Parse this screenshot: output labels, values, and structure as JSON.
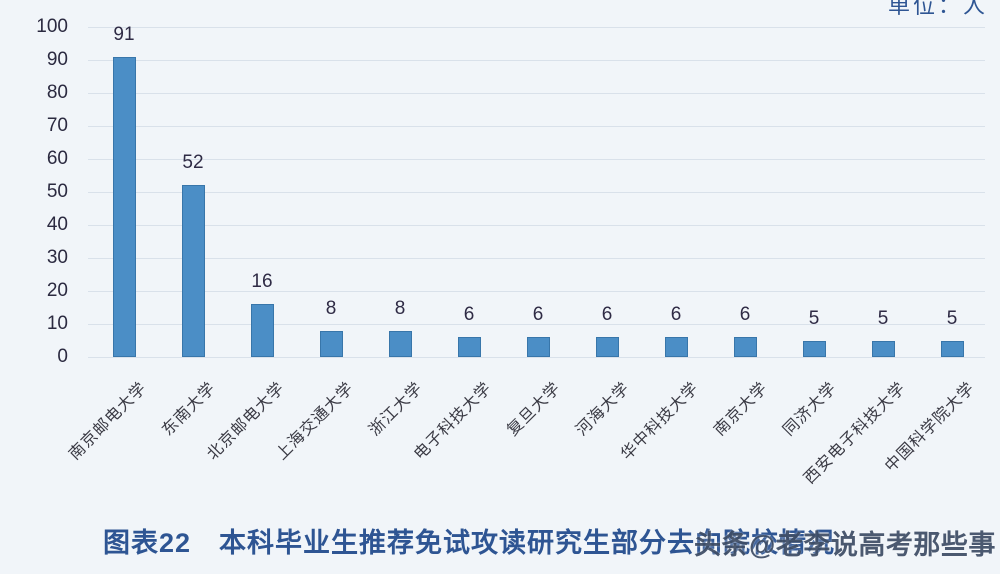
{
  "unit_label": "单位：人",
  "chart_data": {
    "type": "bar",
    "title": "图表22　本科毕业生推荐免试攻读研究生部分去向院校情况",
    "categories": [
      "南京邮电大学",
      "东南大学",
      "北京邮电大学",
      "上海交通大学",
      "浙江大学",
      "电子科技大学",
      "复旦大学",
      "河海大学",
      "华中科技大学",
      "南京大学",
      "同济大学",
      "西安电子科技大学",
      "中国科学院大学"
    ],
    "values": [
      91,
      52,
      16,
      8,
      8,
      6,
      6,
      6,
      6,
      6,
      5,
      5,
      5
    ],
    "value_labels_shown": true,
    "ylim": [
      0,
      100
    ],
    "yticks": [
      0,
      10,
      20,
      30,
      40,
      50,
      60,
      70,
      80,
      90,
      100
    ],
    "grid": true,
    "legend_position": "none",
    "xlabel": "",
    "ylabel": ""
  },
  "caption": "图表22　本科毕业生推荐免试攻读研究生部分去向院校情况",
  "watermark": "头条@老李说高考那些事",
  "colors": {
    "bar": "#4b8ec6",
    "grid": "#d9e1ea",
    "tick_text": "#2b2a40",
    "value_text": "#2f2b45",
    "caption_text": "#2e5593",
    "watermark_text": "#3f4e66",
    "background": "#f1f5f9"
  }
}
